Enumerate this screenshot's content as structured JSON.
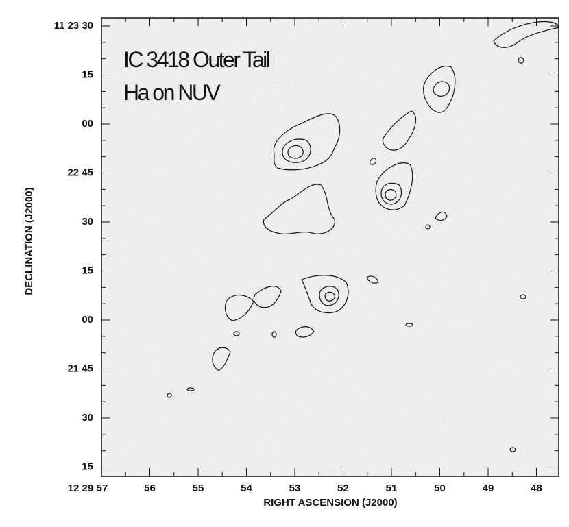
{
  "figure": {
    "annotation": [
      "IC 3418 Outer Tail",
      "Ha on NUV"
    ],
    "x_axis": {
      "label": "RIGHT ASCENSION (J2000)",
      "ticks": [
        "12 29 57",
        "56",
        "55",
        "54",
        "53",
        "52",
        "51",
        "50",
        "49",
        "48"
      ]
    },
    "y_axis": {
      "label": "DECLINATION (J2000)",
      "ticks": [
        "11 23 30",
        "15",
        "00",
        "22 45",
        "30",
        "15",
        "00",
        "21 45",
        "30",
        "15"
      ]
    }
  }
}
